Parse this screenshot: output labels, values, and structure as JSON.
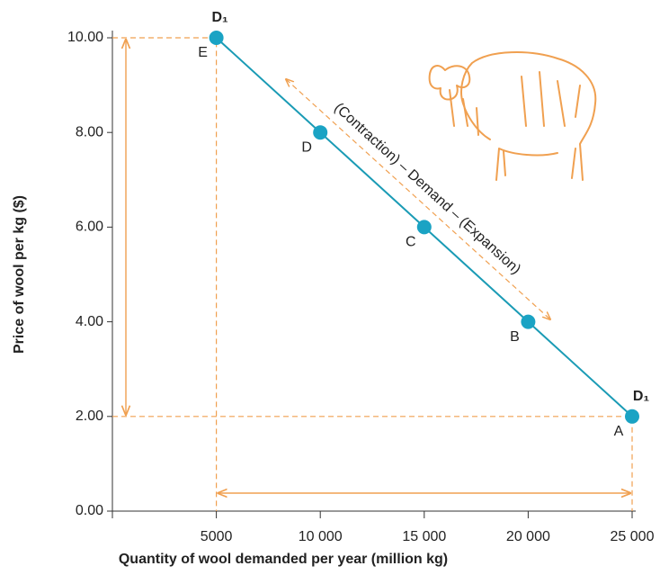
{
  "chart_data": {
    "type": "line",
    "x_label": "Quantity of wool demanded per year (million kg)",
    "y_label": "Price of wool per kg ($)",
    "x": [
      5000,
      10000,
      15000,
      20000,
      25000
    ],
    "series": [
      {
        "color": "#1a9bb5",
        "values": [
          10,
          8,
          6,
          4,
          2
        ],
        "point_labels": [
          "E",
          "D",
          "C",
          "B",
          "A"
        ]
      }
    ],
    "curve_labels": [
      "D₁",
      "D₁"
    ],
    "annotation": "(Contraction) – Demand – (Expansion)",
    "guide_color": "#f0a050",
    "xlim": [
      0,
      25000
    ],
    "xticks": [
      5000,
      {
        "value": 10000,
        "label": "10 000"
      },
      {
        "value": 15000,
        "label": "15 000"
      },
      {
        "value": 20000,
        "label": "20 000"
      },
      {
        "value": 25000,
        "label": "25 000"
      }
    ],
    "ylim": [
      0,
      10
    ],
    "yticks": [
      {
        "value": 0,
        "label": "0.00"
      },
      {
        "value": 2,
        "label": "2.00"
      },
      {
        "value": 4,
        "label": "4.00"
      },
      {
        "value": 6,
        "label": "6.00"
      },
      {
        "value": 8,
        "label": "8.00"
      },
      {
        "value": 10,
        "label": "10.00"
      }
    ]
  }
}
